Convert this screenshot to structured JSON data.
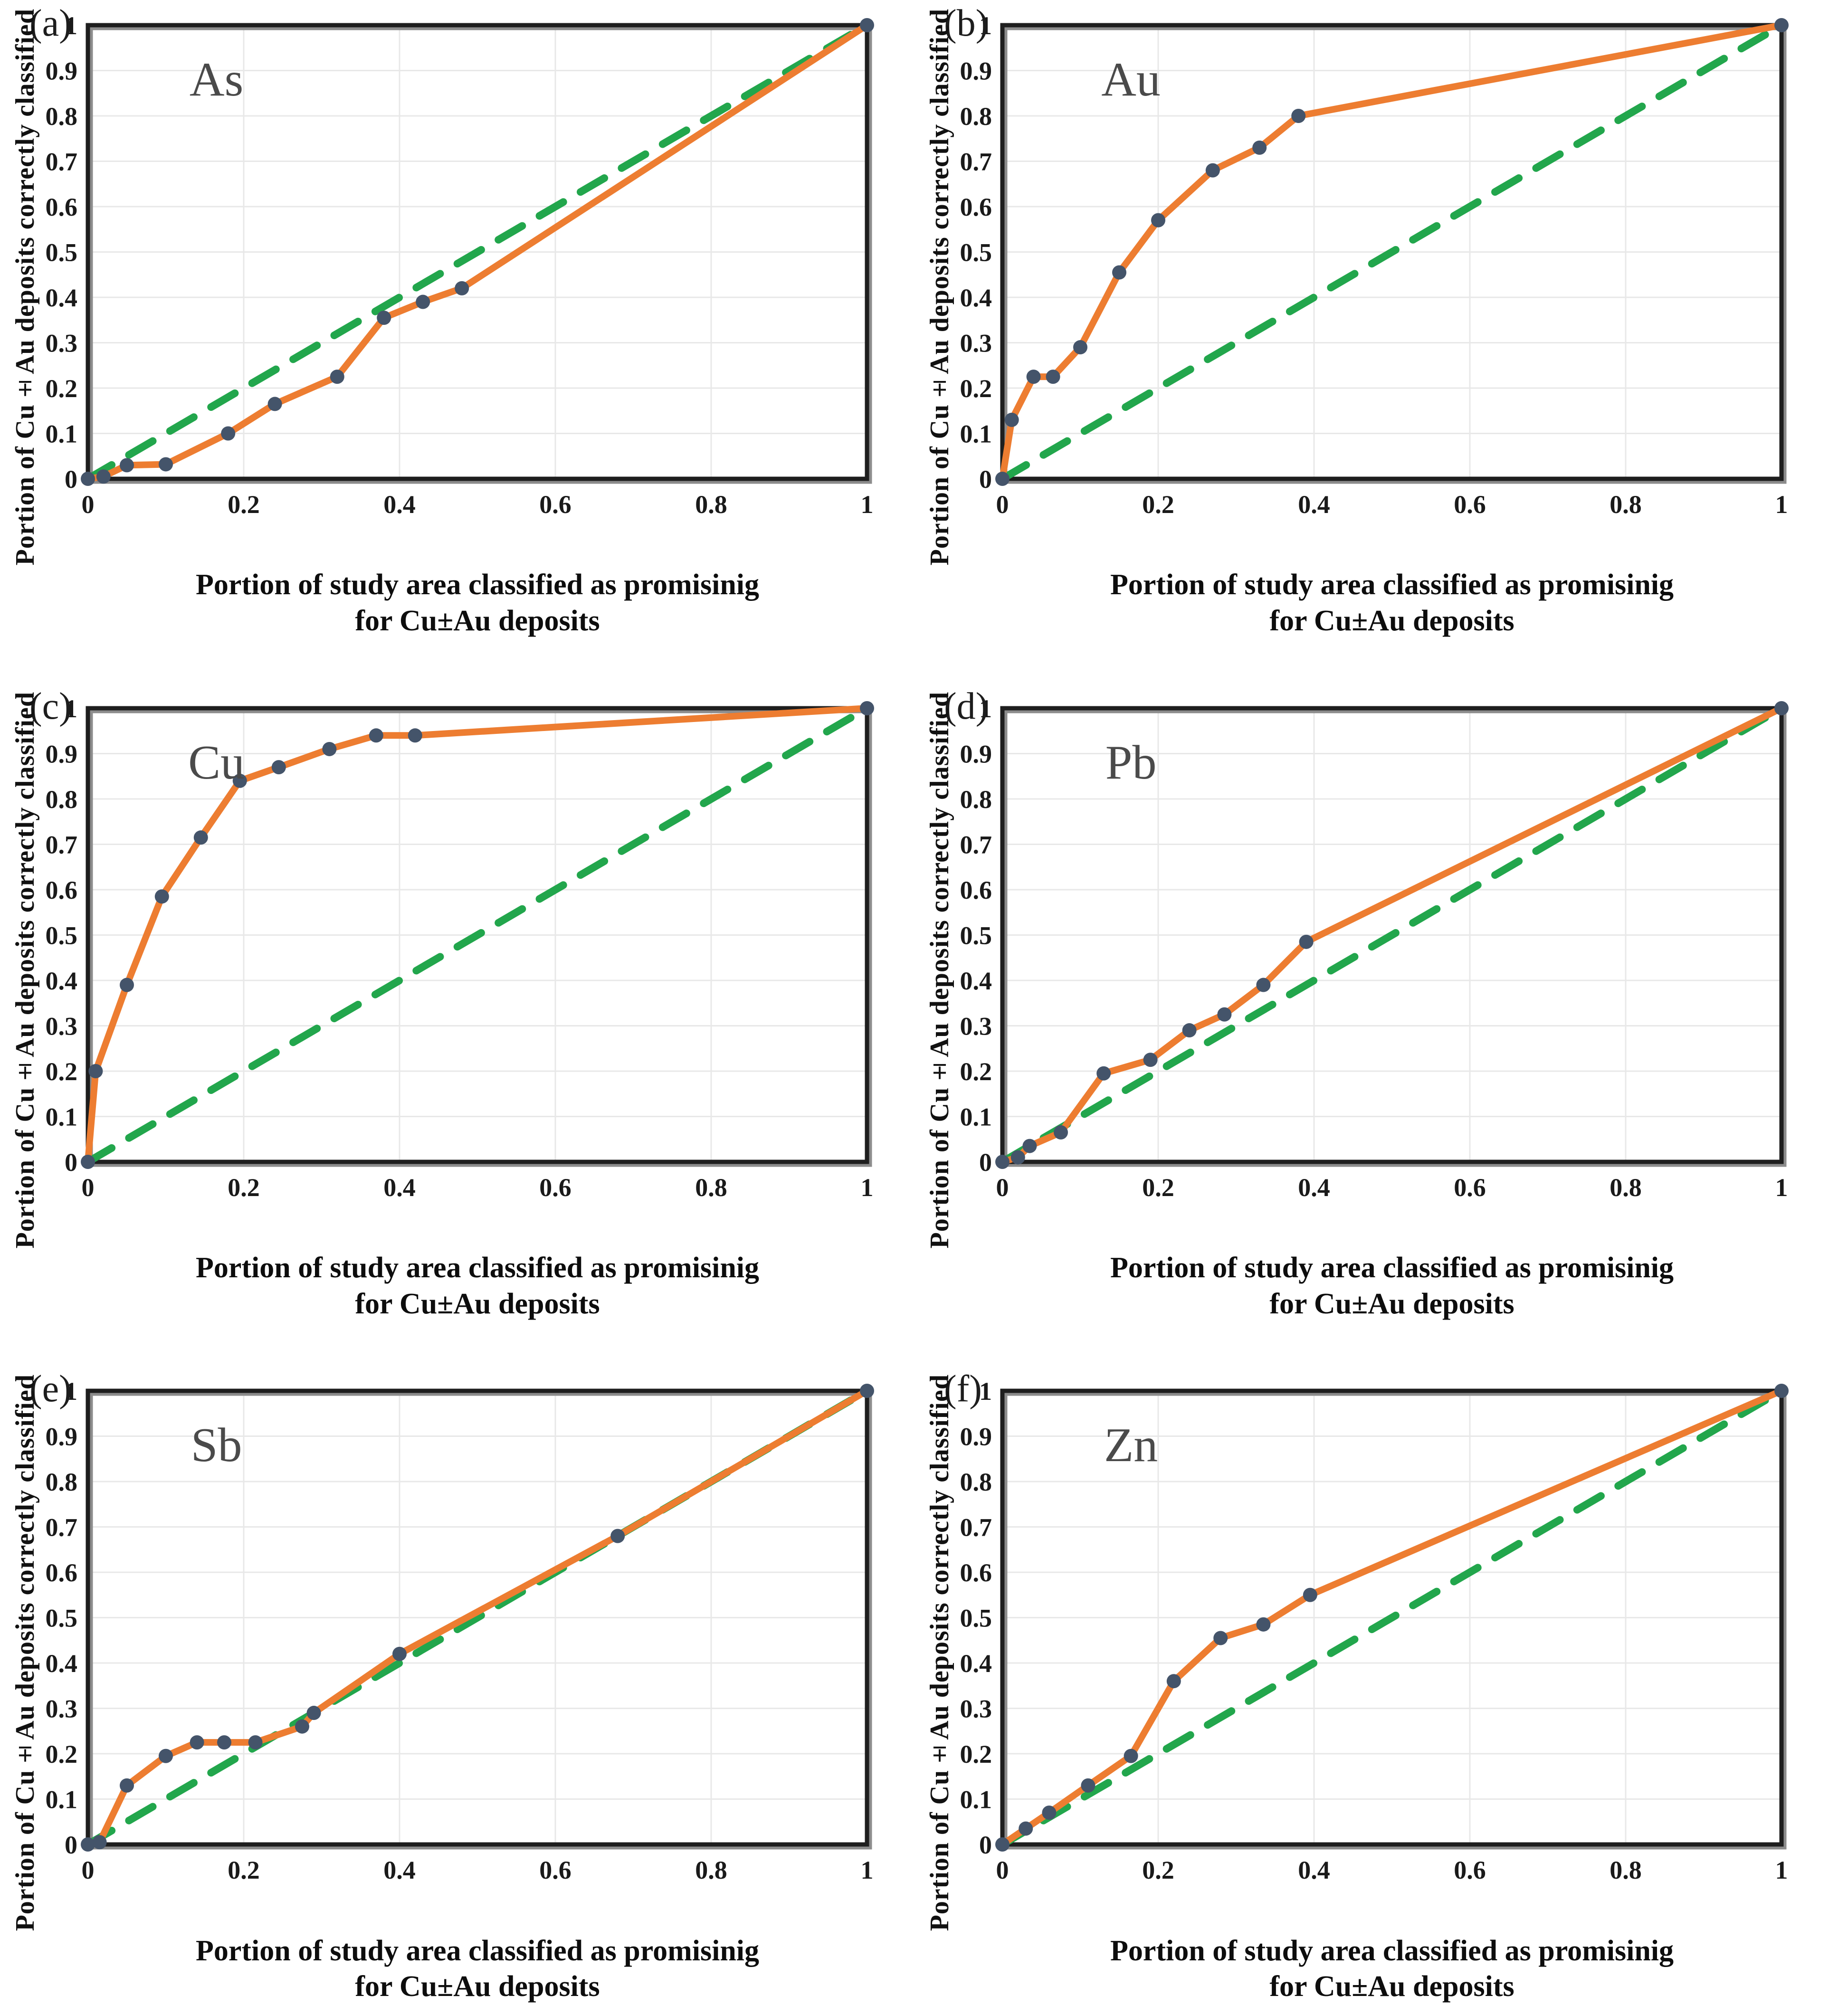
{
  "colors": {
    "model_line": "#ED7D31",
    "random_line": "#22A64C",
    "marker": "#44546A",
    "grid": "#E8E8E8",
    "plot_border": "#1E1E1E",
    "border_shadow": "#8C8C8C",
    "tick_text": "#1A1A1A",
    "element_label": "#4A4A4A",
    "panel_label": "#1D1D1D",
    "background": "#FFFFFF"
  },
  "axis": {
    "y_title": "Portion of Cu±Au deposits correctly classified",
    "x_title_line1": "Portion of study area classified as promisinig",
    "x_title_line2": "for Cu±Au deposits",
    "x_ticks": [
      0,
      0.2,
      0.4,
      0.6,
      0.8,
      1
    ],
    "y_ticks": [
      0,
      0.1,
      0.2,
      0.3,
      0.4,
      0.5,
      0.6,
      0.7,
      0.8,
      0.9,
      1
    ],
    "xlim": [
      0,
      1
    ],
    "ylim": [
      0,
      1
    ],
    "grid": true
  },
  "chart_data": [
    {
      "type": "line",
      "panel_label": "(a)",
      "element": "As",
      "xlabel": "Portion of study area classified as promisinig for Cu±Au deposits",
      "ylabel": "Portion of Cu±Au deposits correctly classified",
      "xlim": [
        0,
        1
      ],
      "ylim": [
        0,
        1
      ],
      "series": [
        {
          "name": "prediction-rate curve",
          "style": "solid orange with markers",
          "points": [
            [
              0,
              0
            ],
            [
              0.02,
              0.005
            ],
            [
              0.05,
              0.03
            ],
            [
              0.1,
              0.032
            ],
            [
              0.18,
              0.1
            ],
            [
              0.24,
              0.165
            ],
            [
              0.32,
              0.225
            ],
            [
              0.38,
              0.355
            ],
            [
              0.43,
              0.39
            ],
            [
              0.48,
              0.42
            ],
            [
              1,
              1
            ]
          ]
        },
        {
          "name": "random classification line",
          "style": "dashed green",
          "points": [
            [
              0,
              0
            ],
            [
              1,
              1
            ]
          ]
        }
      ]
    },
    {
      "type": "line",
      "panel_label": "(b)",
      "element": "Au",
      "xlabel": "Portion of study area classified as promisinig for Cu±Au deposits",
      "ylabel": "Portion of Cu±Au deposits correctly classified",
      "xlim": [
        0,
        1
      ],
      "ylim": [
        0,
        1
      ],
      "series": [
        {
          "name": "prediction-rate curve",
          "style": "solid orange with markers",
          "points": [
            [
              0,
              0
            ],
            [
              0.012,
              0.13
            ],
            [
              0.04,
              0.225
            ],
            [
              0.065,
              0.225
            ],
            [
              0.1,
              0.29
            ],
            [
              0.15,
              0.455
            ],
            [
              0.2,
              0.57
            ],
            [
              0.27,
              0.68
            ],
            [
              0.33,
              0.73
            ],
            [
              0.38,
              0.8
            ],
            [
              1,
              1
            ]
          ]
        },
        {
          "name": "random classification line",
          "style": "dashed green",
          "points": [
            [
              0,
              0
            ],
            [
              1,
              1
            ]
          ]
        }
      ]
    },
    {
      "type": "line",
      "panel_label": "(c)",
      "element": "Cu",
      "xlabel": "Portion of study area classified as promisinig for Cu±Au deposits",
      "ylabel": "Portion of Cu±Au deposits correctly classified",
      "xlim": [
        0,
        1
      ],
      "ylim": [
        0,
        1
      ],
      "series": [
        {
          "name": "prediction-rate curve",
          "style": "solid orange with markers",
          "points": [
            [
              0,
              0
            ],
            [
              0.01,
              0.2
            ],
            [
              0.05,
              0.39
            ],
            [
              0.095,
              0.585
            ],
            [
              0.145,
              0.715
            ],
            [
              0.195,
              0.84
            ],
            [
              0.245,
              0.87
            ],
            [
              0.31,
              0.91
            ],
            [
              0.37,
              0.94
            ],
            [
              0.42,
              0.94
            ],
            [
              1,
              1
            ]
          ]
        },
        {
          "name": "random classification line",
          "style": "dashed green",
          "points": [
            [
              0,
              0
            ],
            [
              1,
              1
            ]
          ]
        }
      ]
    },
    {
      "type": "line",
      "panel_label": "(d)",
      "element": "Pb",
      "xlabel": "Portion of study area classified as promisinig for Cu±Au deposits",
      "ylabel": "Portion of Cu±Au deposits correctly classified",
      "xlim": [
        0,
        1
      ],
      "ylim": [
        0,
        1
      ],
      "series": [
        {
          "name": "prediction-rate curve",
          "style": "solid orange with markers",
          "points": [
            [
              0,
              0
            ],
            [
              0.02,
              0.01
            ],
            [
              0.035,
              0.035
            ],
            [
              0.075,
              0.065
            ],
            [
              0.13,
              0.195
            ],
            [
              0.19,
              0.225
            ],
            [
              0.24,
              0.29
            ],
            [
              0.285,
              0.325
            ],
            [
              0.335,
              0.39
            ],
            [
              0.39,
              0.485
            ],
            [
              1,
              1
            ]
          ]
        },
        {
          "name": "random classification line",
          "style": "dashed green",
          "points": [
            [
              0,
              0
            ],
            [
              1,
              1
            ]
          ]
        }
      ]
    },
    {
      "type": "line",
      "panel_label": "(e)",
      "element": "Sb",
      "xlabel": "Portion of study area classified as promisinig for Cu±Au deposits",
      "ylabel": "Portion of Cu±Au deposits correctly classified",
      "xlim": [
        0,
        1
      ],
      "ylim": [
        0,
        1
      ],
      "series": [
        {
          "name": "prediction-rate curve",
          "style": "solid orange with markers",
          "points": [
            [
              0,
              0
            ],
            [
              0.015,
              0.005
            ],
            [
              0.05,
              0.13
            ],
            [
              0.1,
              0.195
            ],
            [
              0.14,
              0.225
            ],
            [
              0.175,
              0.225
            ],
            [
              0.215,
              0.225
            ],
            [
              0.275,
              0.26
            ],
            [
              0.29,
              0.29
            ],
            [
              0.4,
              0.42
            ],
            [
              0.68,
              0.68
            ],
            [
              1,
              1
            ]
          ]
        },
        {
          "name": "random classification line",
          "style": "dashed green",
          "points": [
            [
              0,
              0
            ],
            [
              1,
              1
            ]
          ]
        }
      ]
    },
    {
      "type": "line",
      "panel_label": "(f)",
      "element": "Zn",
      "xlabel": "Portion of study area classified as promisinig for Cu±Au deposits",
      "ylabel": "Portion of Cu±Au deposits correctly classified",
      "xlim": [
        0,
        1
      ],
      "ylim": [
        0,
        1
      ],
      "series": [
        {
          "name": "prediction-rate curve",
          "style": "solid orange with markers",
          "points": [
            [
              0,
              0
            ],
            [
              0.03,
              0.035
            ],
            [
              0.06,
              0.07
            ],
            [
              0.11,
              0.13
            ],
            [
              0.165,
              0.195
            ],
            [
              0.22,
              0.36
            ],
            [
              0.28,
              0.455
            ],
            [
              0.335,
              0.485
            ],
            [
              0.395,
              0.55
            ],
            [
              1,
              1
            ]
          ]
        },
        {
          "name": "random classification line",
          "style": "dashed green",
          "points": [
            [
              0,
              0
            ],
            [
              1,
              1
            ]
          ]
        }
      ]
    }
  ]
}
